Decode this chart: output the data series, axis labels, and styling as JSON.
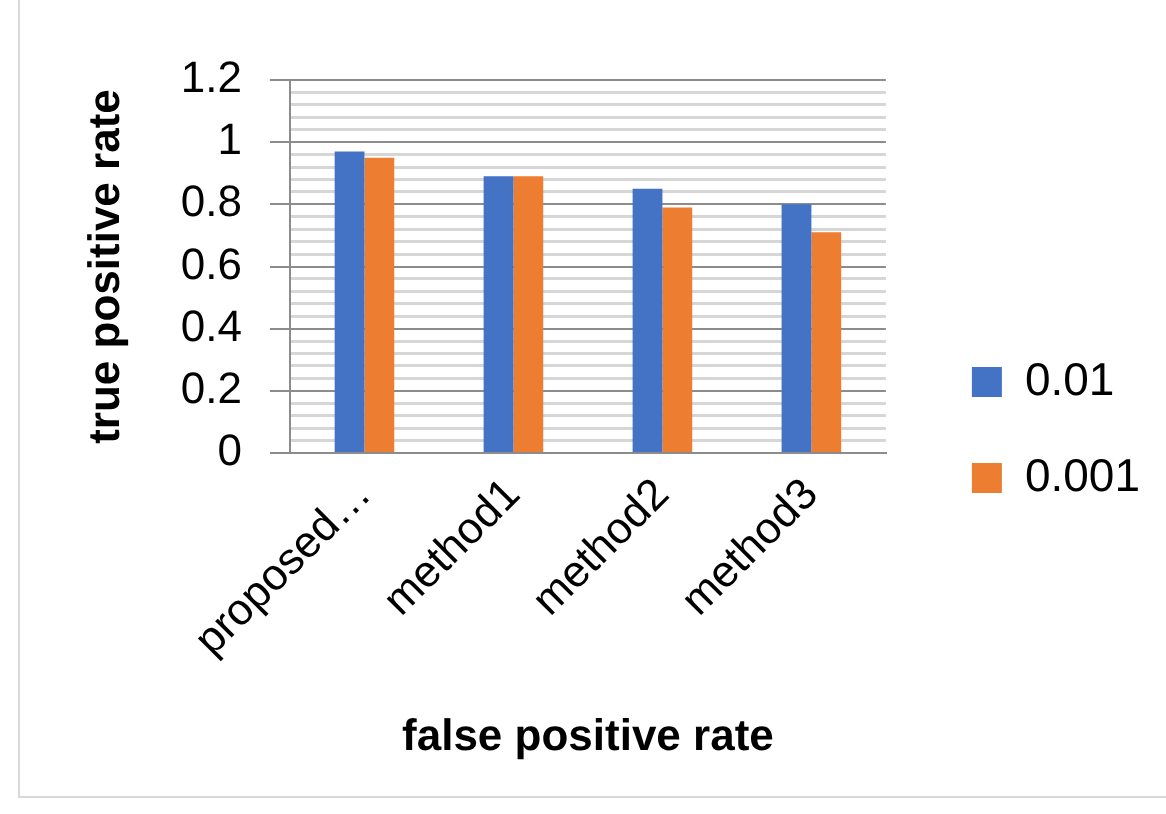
{
  "chart_data": {
    "type": "bar",
    "xlabel": "false positive rate",
    "ylabel": "true positive rate",
    "categories": [
      "proposed…",
      "method1",
      "method2",
      "method3"
    ],
    "series": [
      {
        "name": "0.01",
        "color": "#4472c4",
        "values": [
          0.97,
          0.89,
          0.85,
          0.8
        ]
      },
      {
        "name": "0.001",
        "color": "#ed7d31",
        "values": [
          0.95,
          0.89,
          0.79,
          0.71
        ]
      }
    ],
    "ylim": [
      0,
      1.2
    ],
    "yticks": [
      0,
      {
        "value": 0.04,
        "label": null
      },
      {
        "value": 0.08,
        "label": null
      },
      {
        "value": 0.12,
        "label": null
      },
      {
        "value": 0.16,
        "label": null
      },
      0.2,
      {
        "value": 0.24,
        "label": null
      },
      {
        "value": 0.28,
        "label": null
      },
      {
        "value": 0.32,
        "label": null
      },
      {
        "value": 0.36,
        "label": null
      },
      0.4,
      {
        "value": 0.44,
        "label": null
      },
      {
        "value": 0.48,
        "label": null
      },
      {
        "value": 0.52,
        "label": null
      },
      {
        "value": 0.56,
        "label": null
      },
      0.6,
      {
        "value": 0.64,
        "label": null
      },
      {
        "value": 0.68,
        "label": null
      },
      {
        "value": 0.72,
        "label": null
      },
      {
        "value": 0.76,
        "label": null
      },
      0.8,
      {
        "value": 0.84,
        "label": null
      },
      {
        "value": 0.88,
        "label": null
      },
      {
        "value": 0.92,
        "label": null
      },
      {
        "value": 0.96,
        "label": null
      },
      1,
      {
        "value": 1.04,
        "label": null
      },
      {
        "value": 1.08,
        "label": null
      },
      {
        "value": 1.12,
        "label": null
      },
      {
        "value": 1.16,
        "label": null
      },
      1.2
    ],
    "grid": "y",
    "legend": "right"
  }
}
